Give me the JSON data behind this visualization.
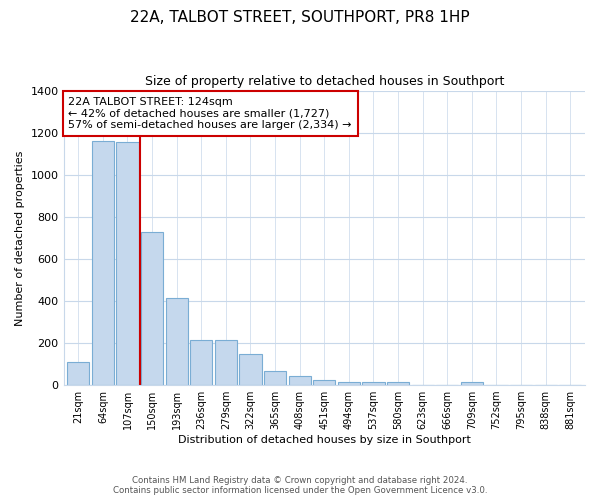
{
  "title": "22A, TALBOT STREET, SOUTHPORT, PR8 1HP",
  "subtitle": "Size of property relative to detached houses in Southport",
  "xlabel": "Distribution of detached houses by size in Southport",
  "ylabel": "Number of detached properties",
  "bar_labels": [
    "21sqm",
    "64sqm",
    "107sqm",
    "150sqm",
    "193sqm",
    "236sqm",
    "279sqm",
    "322sqm",
    "365sqm",
    "408sqm",
    "451sqm",
    "494sqm",
    "537sqm",
    "580sqm",
    "623sqm",
    "666sqm",
    "709sqm",
    "752sqm",
    "795sqm",
    "838sqm",
    "881sqm"
  ],
  "bar_values": [
    110,
    1160,
    1155,
    730,
    415,
    215,
    215,
    150,
    65,
    45,
    25,
    15,
    15,
    15,
    0,
    0,
    15,
    0,
    0,
    0,
    0
  ],
  "bar_color": "#c5d8ed",
  "bar_edge_color": "#7aadd4",
  "vline_x": 2.5,
  "vline_color": "#cc0000",
  "annotation_text": "22A TALBOT STREET: 124sqm\n← 42% of detached houses are smaller (1,727)\n57% of semi-detached houses are larger (2,334) →",
  "annotation_box_color": "#ffffff",
  "annotation_box_edgecolor": "#cc0000",
  "ylim": [
    0,
    1400
  ],
  "yticks": [
    0,
    200,
    400,
    600,
    800,
    1000,
    1200,
    1400
  ],
  "footer_line1": "Contains HM Land Registry data © Crown copyright and database right 2024.",
  "footer_line2": "Contains public sector information licensed under the Open Government Licence v3.0.",
  "bg_color": "#ffffff",
  "grid_color": "#c8d8ea"
}
